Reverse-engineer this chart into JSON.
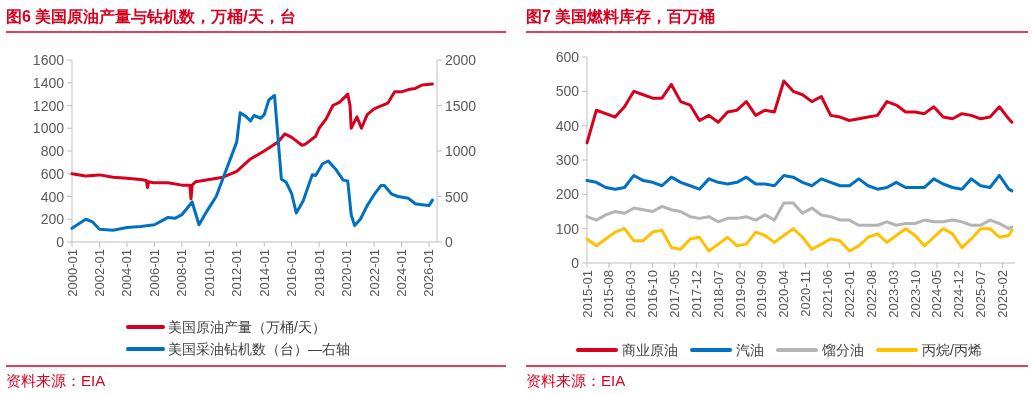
{
  "chart_data": [
    {
      "type": "line",
      "title": "图6  美国原油产量与钻机数，万桶/天，台",
      "legend": "bottom",
      "annotations": [
        "资料来源：EIA"
      ],
      "xlim": [
        "2000-01",
        "2026-08"
      ],
      "xticks": [
        "2000-01",
        "2002-01",
        "2004-01",
        "2006-01",
        "2008-01",
        "2010-01",
        "2012-01",
        "2014-01",
        "2016-01",
        "2018-01",
        "2020-01",
        "2022-01",
        "2024-01",
        "2026-01"
      ],
      "ylim": [
        0,
        1600
      ],
      "yticks": [
        0,
        200,
        400,
        600,
        800,
        1000,
        1200,
        1400,
        1600
      ],
      "y2lim": [
        0,
        2000
      ],
      "y2ticks": [
        0,
        500,
        1000,
        1500,
        2000
      ],
      "series": [
        {
          "name": "美国原油产量（万桶/天）",
          "color": "#d7001f",
          "x": [
            "2000-01",
            "2001-01",
            "2002-01",
            "2003-01",
            "2004-01",
            "2005-01",
            "2005-06",
            "2005-07",
            "2005-08",
            "2006-01",
            "2007-01",
            "2008-01",
            "2008-08",
            "2008-09",
            "2008-10",
            "2009-01",
            "2010-01",
            "2011-01",
            "2012-01",
            "2013-01",
            "2014-01",
            "2015-01",
            "2015-07",
            "2016-01",
            "2016-10",
            "2017-01",
            "2017-10",
            "2018-01",
            "2018-07",
            "2019-01",
            "2019-07",
            "2020-02",
            "2020-04",
            "2020-05",
            "2020-10",
            "2021-02",
            "2021-07",
            "2022-01",
            "2023-01",
            "2023-07",
            "2024-01",
            "2024-07",
            "2025-01",
            "2025-07",
            "2026-04"
          ],
          "values": [
            600,
            580,
            590,
            570,
            560,
            550,
            540,
            480,
            530,
            520,
            520,
            500,
            500,
            380,
            500,
            530,
            550,
            570,
            620,
            730,
            800,
            880,
            950,
            920,
            850,
            860,
            930,
            1000,
            1080,
            1200,
            1230,
            1300,
            1200,
            1000,
            1100,
            1000,
            1120,
            1170,
            1220,
            1320,
            1320,
            1340,
            1350,
            1380,
            1390
          ]
        },
        {
          "name": "美国采油钻机数（台）—右轴",
          "color": "#0070c0",
          "axis": "y2",
          "x": [
            "2000-01",
            "2000-07",
            "2001-01",
            "2001-07",
            "2002-01",
            "2003-01",
            "2004-01",
            "2005-01",
            "2006-01",
            "2006-07",
            "2007-01",
            "2007-07",
            "2008-01",
            "2008-10",
            "2009-04",
            "2009-09",
            "2010-01",
            "2010-07",
            "2011-01",
            "2011-07",
            "2012-01",
            "2012-04",
            "2012-09",
            "2013-01",
            "2013-04",
            "2013-10",
            "2014-01",
            "2014-05",
            "2014-10",
            "2015-04",
            "2015-08",
            "2016-01",
            "2016-05",
            "2016-11",
            "2017-07",
            "2017-10",
            "2018-04",
            "2018-09",
            "2019-04",
            "2019-10",
            "2020-02",
            "2020-05",
            "2020-08",
            "2021-01",
            "2021-07",
            "2022-01",
            "2022-07",
            "2022-10",
            "2023-04",
            "2023-10",
            "2024-07",
            "2025-01",
            "2025-07",
            "2026-01",
            "2026-04"
          ],
          "values": [
            150,
            200,
            250,
            220,
            140,
            130,
            160,
            170,
            190,
            230,
            270,
            260,
            300,
            440,
            190,
            300,
            380,
            500,
            700,
            900,
            1100,
            1420,
            1380,
            1330,
            1390,
            1360,
            1400,
            1560,
            1610,
            690,
            660,
            530,
            320,
            450,
            740,
            730,
            860,
            890,
            790,
            680,
            670,
            300,
            180,
            250,
            400,
            520,
            620,
            620,
            530,
            500,
            480,
            420,
            410,
            400,
            460
          ]
        }
      ]
    },
    {
      "type": "line",
      "title": "图7  美国燃料库存，百万桶",
      "legend": "bottom",
      "annotations": [
        "资料来源：EIA"
      ],
      "xlim": [
        "2015-01",
        "2026-06"
      ],
      "xticks": [
        "2015-01",
        "2015-08",
        "2016-03",
        "2016-10",
        "2017-05",
        "2017-12",
        "2018-07",
        "2019-02",
        "2019-09",
        "2020-04",
        "2020-11",
        "2021-06",
        "2022-01",
        "2022-08",
        "2023-03",
        "2023-10",
        "2024-05",
        "2024-12",
        "2025-07",
        "2026-02"
      ],
      "ylim": [
        0,
        600
      ],
      "yticks": [
        0,
        100,
        200,
        300,
        400,
        500,
        600
      ],
      "x": [
        "2015-01",
        "2015-04",
        "2015-07",
        "2015-10",
        "2016-01",
        "2016-04",
        "2016-07",
        "2016-10",
        "2017-01",
        "2017-04",
        "2017-07",
        "2017-10",
        "2018-01",
        "2018-04",
        "2018-07",
        "2018-10",
        "2019-01",
        "2019-04",
        "2019-07",
        "2019-10",
        "2020-01",
        "2020-04",
        "2020-07",
        "2020-10",
        "2021-01",
        "2021-04",
        "2021-07",
        "2021-10",
        "2022-01",
        "2022-04",
        "2022-07",
        "2022-10",
        "2023-01",
        "2023-04",
        "2023-07",
        "2023-10",
        "2024-01",
        "2024-04",
        "2024-07",
        "2024-10",
        "2025-01",
        "2025-04",
        "2025-07",
        "2025-10",
        "2026-01",
        "2026-04",
        "2026-05"
      ],
      "series": [
        {
          "name": "商业原油",
          "color": "#d7001f",
          "values": [
            350,
            445,
            435,
            425,
            455,
            500,
            490,
            480,
            480,
            520,
            470,
            460,
            415,
            430,
            410,
            440,
            445,
            470,
            430,
            445,
            440,
            530,
            500,
            490,
            470,
            485,
            430,
            425,
            415,
            420,
            425,
            430,
            470,
            460,
            440,
            440,
            435,
            455,
            425,
            420,
            435,
            430,
            420,
            425,
            455,
            420,
            410
          ]
        },
        {
          "name": "汽油",
          "color": "#0070c0",
          "values": [
            240,
            235,
            220,
            215,
            220,
            255,
            240,
            235,
            225,
            250,
            235,
            225,
            215,
            245,
            235,
            230,
            235,
            250,
            230,
            230,
            225,
            255,
            250,
            235,
            225,
            245,
            235,
            225,
            225,
            245,
            225,
            215,
            220,
            235,
            220,
            220,
            220,
            245,
            230,
            220,
            215,
            245,
            225,
            220,
            255,
            215,
            210
          ]
        },
        {
          "name": "馏分油",
          "color": "#b4b4b4",
          "values": [
            135,
            125,
            140,
            150,
            145,
            160,
            155,
            150,
            165,
            155,
            150,
            135,
            130,
            135,
            120,
            130,
            130,
            135,
            125,
            140,
            125,
            175,
            175,
            145,
            160,
            140,
            135,
            125,
            125,
            110,
            110,
            110,
            120,
            110,
            115,
            115,
            125,
            120,
            120,
            125,
            120,
            110,
            110,
            125,
            115,
            100,
            105
          ]
        },
        {
          "name": "丙烷/丙烯",
          "color": "#ffc000",
          "values": [
            70,
            50,
            70,
            90,
            100,
            65,
            65,
            90,
            95,
            45,
            40,
            70,
            75,
            35,
            55,
            75,
            50,
            55,
            90,
            80,
            60,
            80,
            100,
            75,
            40,
            55,
            70,
            65,
            35,
            50,
            75,
            85,
            60,
            80,
            100,
            80,
            50,
            75,
            100,
            85,
            45,
            70,
            100,
            100,
            75,
            80,
            95
          ]
        }
      ]
    }
  ]
}
